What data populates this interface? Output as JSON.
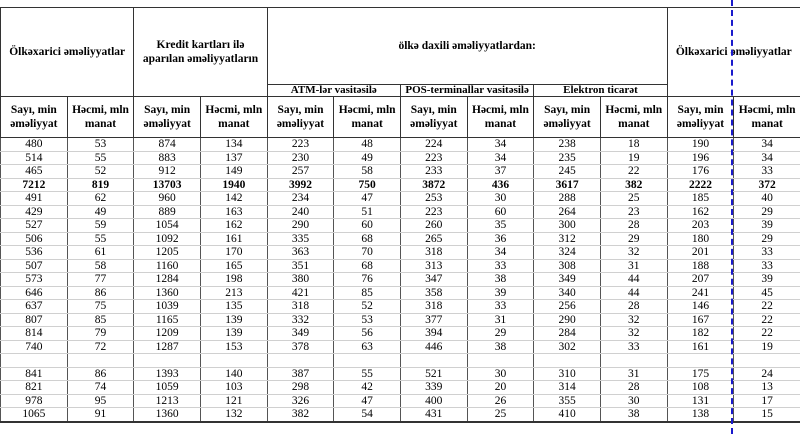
{
  "header": {
    "group1": "Ölkəxarici əməliyyatlar",
    "group2": "Kredit kartları ilə aparılan əməliyyatların",
    "group3": "ölkə daxili əməliyyatlardan:",
    "group3_sub": [
      "ATM-lər vasitəsilə",
      "POS-terminallar vasitəsilə",
      "Elektron ticarət"
    ],
    "group4": "Ölkəxarici əməliyyatlar",
    "count_label": "Sayı, min əməliyyat",
    "volume_label": "Həcmi, mln manat"
  },
  "rows": [
    {
      "bold": false,
      "values": [
        "480",
        "53",
        "874",
        "134",
        "223",
        "48",
        "224",
        "34",
        "238",
        "18",
        "190",
        "34"
      ]
    },
    {
      "bold": false,
      "values": [
        "514",
        "55",
        "883",
        "137",
        "230",
        "49",
        "223",
        "34",
        "235",
        "19",
        "196",
        "34"
      ]
    },
    {
      "bold": false,
      "values": [
        "465",
        "52",
        "912",
        "149",
        "257",
        "58",
        "233",
        "37",
        "245",
        "22",
        "176",
        "33"
      ]
    },
    {
      "bold": true,
      "values": [
        "7212",
        "819",
        "13703",
        "1940",
        "3992",
        "750",
        "3872",
        "436",
        "3617",
        "382",
        "2222",
        "372"
      ]
    },
    {
      "bold": false,
      "values": [
        "491",
        "62",
        "960",
        "142",
        "234",
        "47",
        "253",
        "30",
        "288",
        "25",
        "185",
        "40"
      ]
    },
    {
      "bold": false,
      "values": [
        "429",
        "49",
        "889",
        "163",
        "240",
        "51",
        "223",
        "60",
        "264",
        "23",
        "162",
        "29"
      ]
    },
    {
      "bold": false,
      "values": [
        "527",
        "59",
        "1054",
        "162",
        "290",
        "60",
        "260",
        "35",
        "300",
        "28",
        "203",
        "39"
      ]
    },
    {
      "bold": false,
      "values": [
        "506",
        "55",
        "1092",
        "161",
        "335",
        "68",
        "265",
        "36",
        "312",
        "29",
        "180",
        "29"
      ]
    },
    {
      "bold": false,
      "values": [
        "536",
        "61",
        "1205",
        "170",
        "363",
        "70",
        "318",
        "34",
        "324",
        "32",
        "201",
        "33"
      ]
    },
    {
      "bold": false,
      "values": [
        "507",
        "58",
        "1160",
        "165",
        "351",
        "68",
        "313",
        "33",
        "308",
        "31",
        "188",
        "33"
      ]
    },
    {
      "bold": false,
      "values": [
        "573",
        "77",
        "1284",
        "198",
        "380",
        "76",
        "347",
        "38",
        "349",
        "44",
        "207",
        "39"
      ]
    },
    {
      "bold": false,
      "values": [
        "646",
        "86",
        "1360",
        "213",
        "421",
        "85",
        "358",
        "39",
        "340",
        "44",
        "241",
        "45"
      ]
    },
    {
      "bold": false,
      "values": [
        "637",
        "75",
        "1039",
        "135",
        "318",
        "52",
        "318",
        "33",
        "256",
        "28",
        "146",
        "22"
      ]
    },
    {
      "bold": false,
      "values": [
        "807",
        "85",
        "1165",
        "139",
        "332",
        "53",
        "377",
        "31",
        "290",
        "32",
        "167",
        "22"
      ]
    },
    {
      "bold": false,
      "values": [
        "814",
        "79",
        "1209",
        "139",
        "349",
        "56",
        "394",
        "29",
        "284",
        "32",
        "182",
        "22"
      ]
    },
    {
      "bold": false,
      "values": [
        "740",
        "72",
        "1287",
        "153",
        "378",
        "63",
        "446",
        "38",
        "302",
        "33",
        "161",
        "19"
      ]
    },
    {
      "bold": false,
      "values": [
        "",
        "",
        "",
        "",
        "",
        "",
        "",
        "",
        "",
        "",
        "",
        ""
      ]
    },
    {
      "bold": false,
      "values": [
        "841",
        "86",
        "1393",
        "140",
        "387",
        "55",
        "521",
        "30",
        "310",
        "31",
        "175",
        "24"
      ]
    },
    {
      "bold": false,
      "values": [
        "821",
        "74",
        "1059",
        "103",
        "298",
        "42",
        "339",
        "20",
        "314",
        "28",
        "108",
        "13"
      ]
    },
    {
      "bold": false,
      "values": [
        "978",
        "95",
        "1213",
        "121",
        "326",
        "47",
        "400",
        "26",
        "355",
        "30",
        "131",
        "17"
      ]
    },
    {
      "bold": false,
      "values": [
        "1065",
        "91",
        "1360",
        "132",
        "382",
        "54",
        "431",
        "25",
        "410",
        "38",
        "138",
        "15"
      ]
    }
  ],
  "colors": {
    "page_break": "#1a1acc",
    "grid": "#d0d0d0"
  }
}
